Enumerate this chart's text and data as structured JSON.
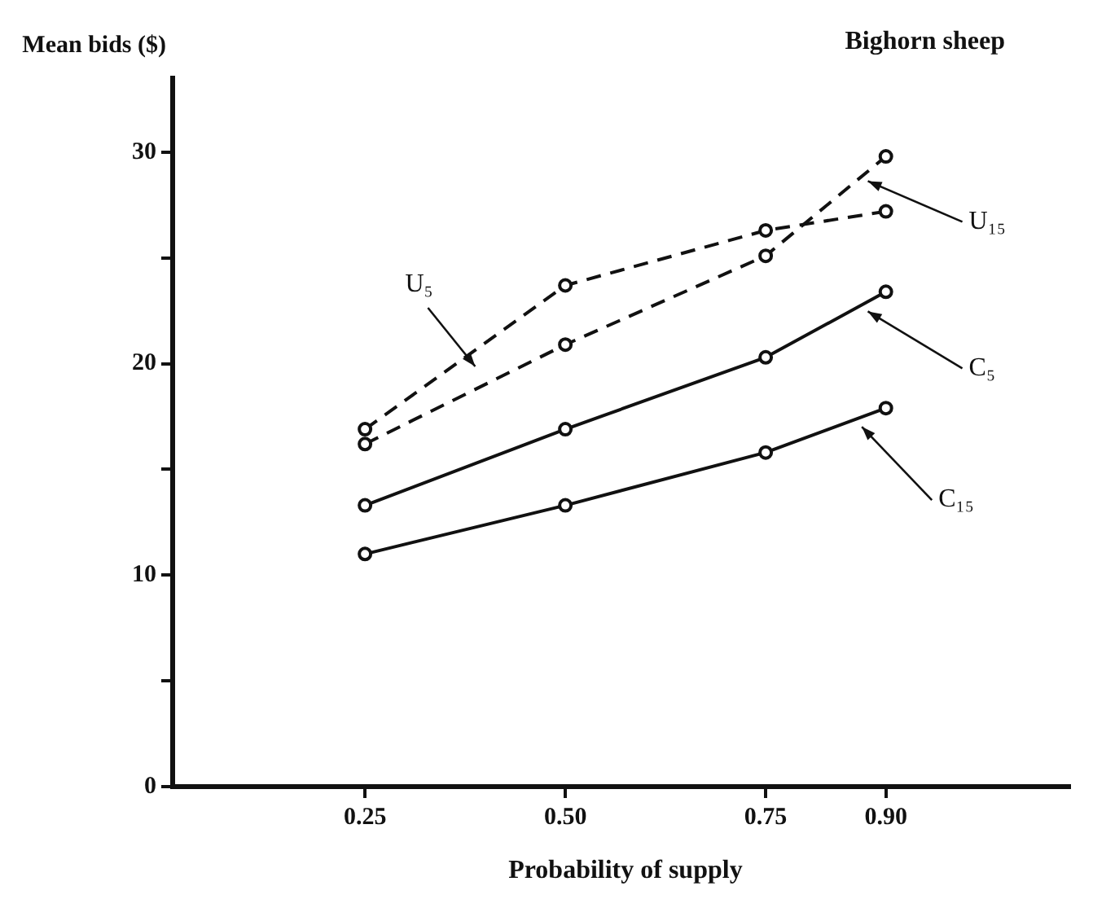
{
  "chart_data": {
    "type": "line",
    "title": "Bighorn sheep",
    "xlabel": "Probability of supply",
    "ylabel": "Mean bids ($)",
    "x": [
      0.25,
      0.5,
      0.75,
      0.9
    ],
    "series": [
      {
        "name": "U₅",
        "color": "#111111",
        "line_style": "dashed",
        "values": [
          16.9,
          23.7,
          26.3,
          27.2
        ]
      },
      {
        "name": "U₁₅",
        "color": "#111111",
        "line_style": "dashed",
        "values": [
          16.2,
          20.9,
          25.1,
          29.8
        ]
      },
      {
        "name": "C₅",
        "color": "#111111",
        "line_style": "solid",
        "values": [
          13.3,
          16.9,
          20.3,
          23.4
        ]
      },
      {
        "name": "C₁₅",
        "color": "#111111",
        "line_style": "solid",
        "values": [
          11.0,
          13.3,
          15.8,
          17.9
        ]
      }
    ],
    "xlim": [
      0.01,
      1.13
    ],
    "xticks": [
      0.25,
      {
        "value": 0.5,
        "label": "0.50"
      },
      0.75,
      {
        "value": 0.9,
        "label": "0.90"
      }
    ],
    "ylim": [
      0,
      33.5
    ],
    "yticks": [
      0,
      {
        "value": 5,
        "label": null
      },
      10,
      {
        "value": 15,
        "label": null
      },
      20,
      {
        "value": 25,
        "label": null
      },
      30
    ],
    "marker": "circle",
    "grid": false,
    "legend": false
  }
}
